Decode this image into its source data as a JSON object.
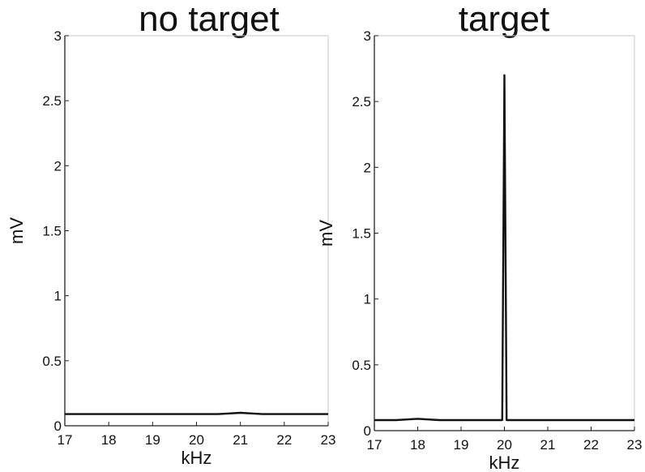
{
  "chart_data": [
    {
      "type": "line",
      "title": "no target",
      "xlabel": "kHz",
      "ylabel": "mV",
      "xlim": [
        17,
        23
      ],
      "ylim": [
        0,
        3
      ],
      "xticks": [
        "17",
        "18",
        "19",
        "20",
        "21",
        "22",
        "23"
      ],
      "yticks": [
        "0",
        "0.5",
        "1",
        "1.5",
        "2",
        "2.5",
        "3"
      ],
      "grid": false,
      "line_color": "#111111",
      "x": [
        17,
        17.5,
        18,
        18.5,
        19,
        19.5,
        20,
        20.5,
        21,
        21.5,
        22,
        22.5,
        23
      ],
      "y": [
        0.09,
        0.09,
        0.09,
        0.09,
        0.09,
        0.09,
        0.09,
        0.09,
        0.1,
        0.09,
        0.09,
        0.09,
        0.09
      ]
    },
    {
      "type": "line",
      "title": "target",
      "xlabel": "kHz",
      "ylabel": "mV",
      "xlim": [
        17,
        23
      ],
      "ylim": [
        0,
        3
      ],
      "xticks": [
        "17",
        "18",
        "19",
        "20",
        "21",
        "22",
        "23"
      ],
      "yticks": [
        "0",
        "0.5",
        "1",
        "1.5",
        "2",
        "2.5",
        "3"
      ],
      "grid": false,
      "line_color": "#111111",
      "x": [
        17,
        17.5,
        18,
        18.5,
        19,
        19.5,
        19.95,
        20,
        20.05,
        20.5,
        21,
        21.5,
        22,
        22.5,
        23
      ],
      "y": [
        0.08,
        0.08,
        0.09,
        0.08,
        0.08,
        0.08,
        0.08,
        2.7,
        0.08,
        0.08,
        0.08,
        0.08,
        0.08,
        0.08,
        0.08
      ]
    }
  ]
}
